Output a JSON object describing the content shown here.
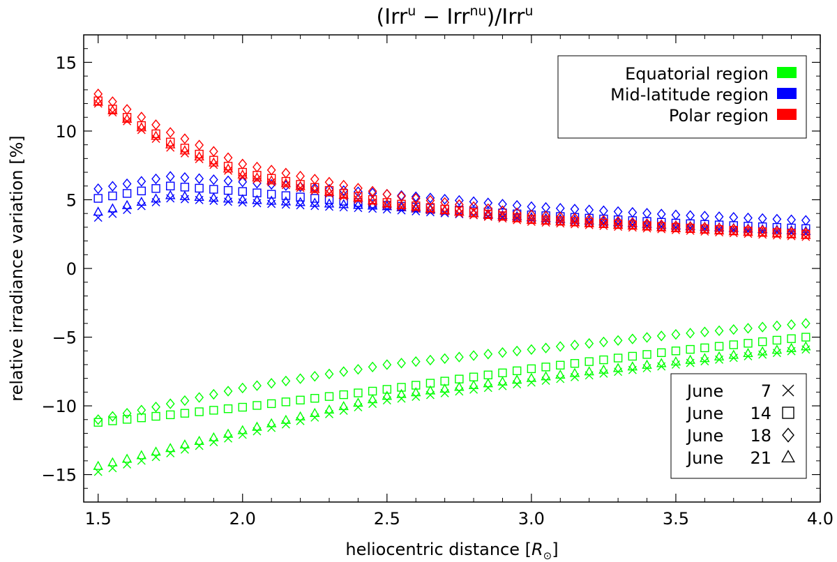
{
  "chart_data": {
    "type": "scatter",
    "title": "(Irr^u − Irr^nu)/Irr^u",
    "title_parts": {
      "open": "(Irr",
      "sup1": "u",
      "minus": " − Irr",
      "sup2": "nu",
      "close": ")/Irr",
      "sup3": "u"
    },
    "xlabel": "heliocentric distance [R⊙]",
    "xlabel_parts": {
      "text": "heliocentric distance [",
      "symbol": "R",
      "sub": "⊙",
      "close": "]"
    },
    "ylabel": "relative irradiance variation [%]",
    "xlim": [
      1.45,
      4.0
    ],
    "ylim": [
      -17,
      17
    ],
    "xticks": [
      1.5,
      2.0,
      2.5,
      3.0,
      3.5,
      4.0
    ],
    "xtick_labels": [
      "1.5",
      "2.0",
      "2.5",
      "3.0",
      "3.5",
      "4.0"
    ],
    "yticks": [
      -15,
      -10,
      -5,
      0,
      5,
      10,
      15
    ],
    "ytick_labels": [
      "−15",
      "−10",
      "−5",
      "0",
      "5",
      "10",
      "15"
    ],
    "x_start": 1.5,
    "x_step": 0.05,
    "n_points": 50,
    "regions": [
      {
        "name": "Equatorial region",
        "color": "#00ff00",
        "anchors": {
          "June 7": [
            [
              1.5,
              -14.8
            ],
            [
              2.0,
              -12.1
            ],
            [
              2.5,
              -9.6
            ],
            [
              3.0,
              -8.3
            ],
            [
              3.5,
              -7.0
            ],
            [
              3.95,
              -5.9
            ]
          ],
          "June 14": [
            [
              1.5,
              -11.2
            ],
            [
              2.0,
              -10.1
            ],
            [
              2.5,
              -8.8
            ],
            [
              3.0,
              -7.3
            ],
            [
              3.5,
              -6.0
            ],
            [
              3.95,
              -5.0
            ]
          ],
          "June 18": [
            [
              1.5,
              -11.0
            ],
            [
              2.0,
              -8.7
            ],
            [
              2.5,
              -7.0
            ],
            [
              3.0,
              -5.9
            ],
            [
              3.5,
              -4.8
            ],
            [
              3.95,
              -4.0
            ]
          ],
          "June 21": [
            [
              1.5,
              -14.4
            ],
            [
              2.0,
              -11.8
            ],
            [
              2.5,
              -9.3
            ],
            [
              3.0,
              -8.0
            ],
            [
              3.5,
              -6.8
            ],
            [
              3.95,
              -5.7
            ]
          ]
        }
      },
      {
        "name": "Mid-latitude region",
        "color": "#0000ff",
        "anchors": {
          "June 7": [
            [
              1.5,
              3.7
            ],
            [
              1.75,
              5.1
            ],
            [
              2.0,
              4.8
            ],
            [
              2.5,
              4.3
            ],
            [
              3.0,
              3.6
            ],
            [
              3.5,
              3.0
            ],
            [
              3.95,
              2.6
            ]
          ],
          "June 14": [
            [
              1.5,
              5.1
            ],
            [
              1.75,
              6.0
            ],
            [
              2.0,
              5.6
            ],
            [
              2.5,
              4.6
            ],
            [
              3.0,
              3.9
            ],
            [
              3.5,
              3.3
            ],
            [
              3.95,
              2.9
            ]
          ],
          "June 18": [
            [
              1.5,
              5.8
            ],
            [
              1.75,
              6.7
            ],
            [
              2.0,
              6.3
            ],
            [
              2.5,
              5.4
            ],
            [
              3.0,
              4.5
            ],
            [
              3.5,
              3.9
            ],
            [
              3.95,
              3.5
            ]
          ],
          "June 21": [
            [
              1.5,
              4.1
            ],
            [
              1.75,
              5.3
            ],
            [
              2.0,
              5.0
            ],
            [
              2.5,
              4.5
            ],
            [
              3.0,
              3.7
            ],
            [
              3.5,
              3.1
            ],
            [
              3.95,
              2.7
            ]
          ]
        }
      },
      {
        "name": "Polar region",
        "color": "#ff0000",
        "anchors": {
          "June 7": [
            [
              1.5,
              12.0
            ],
            [
              1.75,
              8.8
            ],
            [
              2.0,
              6.7
            ],
            [
              2.5,
              4.6
            ],
            [
              3.0,
              3.4
            ],
            [
              3.5,
              2.8
            ],
            [
              3.95,
              2.3
            ]
          ],
          "June 14": [
            [
              1.5,
              12.2
            ],
            [
              1.75,
              9.2
            ],
            [
              2.0,
              7.0
            ],
            [
              2.5,
              4.8
            ],
            [
              3.0,
              3.6
            ],
            [
              3.5,
              3.0
            ],
            [
              3.95,
              2.5
            ]
          ],
          "June 18": [
            [
              1.5,
              12.7
            ],
            [
              1.75,
              9.9
            ],
            [
              2.0,
              7.6
            ],
            [
              2.5,
              5.4
            ],
            [
              3.0,
              3.9
            ],
            [
              3.5,
              3.1
            ],
            [
              3.95,
              2.6
            ]
          ],
          "June 21": [
            [
              1.5,
              12.1
            ],
            [
              1.75,
              9.0
            ],
            [
              2.0,
              6.8
            ],
            [
              2.5,
              4.7
            ],
            [
              3.0,
              3.5
            ],
            [
              3.5,
              2.9
            ],
            [
              3.95,
              2.4
            ]
          ]
        }
      }
    ],
    "dates": [
      {
        "label": "June 7",
        "day": "7",
        "marker": "cross"
      },
      {
        "label": "June 14",
        "day": "14",
        "marker": "square"
      },
      {
        "label": "June 18",
        "day": "18",
        "marker": "diamond"
      },
      {
        "label": "June 21",
        "day": "21",
        "marker": "triangle"
      }
    ],
    "legend_regions_position": "top-right",
    "legend_dates_position": "bottom-right",
    "month_label": "June"
  }
}
